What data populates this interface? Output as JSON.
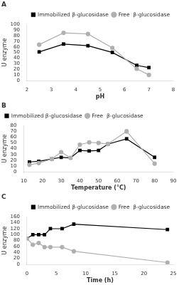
{
  "chart_data": [
    {
      "type": "line",
      "title": "A",
      "xlabel": "pH",
      "ylabel": "U enzyme",
      "xlim": [
        2,
        8
      ],
      "ylim": [
        0,
        100
      ],
      "xticks": [
        2,
        3,
        4,
        5,
        6,
        7,
        8
      ],
      "yticks": [
        0,
        10,
        20,
        30,
        40,
        50,
        60,
        70,
        80,
        90,
        100
      ],
      "grid": false,
      "legend": "upper right",
      "x": [
        2.5,
        3.5,
        4.5,
        5.5,
        6.5,
        7.0
      ],
      "series": [
        {
          "name": "Free  β-glucosidase",
          "color": "#b0b0b0",
          "marker": "circle",
          "line_style": "solid",
          "values": [
            64,
            85,
            83,
            58,
            21,
            10
          ],
          "errors": [
            2,
            2,
            2,
            2,
            2,
            2
          ]
        },
        {
          "name": "Immobilized β-glucosidase",
          "color": "#000000",
          "marker": "square",
          "line_style": "solid",
          "values": [
            51,
            65,
            62,
            50,
            27,
            23
          ],
          "errors": [
            2,
            2,
            2,
            2,
            2,
            2
          ]
        }
      ]
    },
    {
      "type": "line",
      "title": "B",
      "xlabel": "Temperature (°C)",
      "ylabel": "U enzyme",
      "xlim": [
        10,
        90
      ],
      "ylim": [
        0,
        80
      ],
      "xticks": [
        10,
        20,
        30,
        40,
        50,
        60,
        70,
        80,
        90
      ],
      "yticks": [
        0,
        10,
        20,
        30,
        40,
        50,
        60,
        70,
        80
      ],
      "grid": false,
      "legend": "upper left",
      "x": [
        13,
        18,
        25,
        30,
        35,
        40,
        45,
        50,
        55,
        65,
        80
      ],
      "series": [
        {
          "name": "Free  β-glucosidase",
          "color": "#b0b0b0",
          "marker": "circle",
          "line_style": "solid",
          "values": [
            12,
            15,
            22,
            34,
            24,
            47,
            51,
            50,
            48,
            70,
            14
          ],
          "errors": [
            1,
            1,
            1,
            2,
            1,
            2,
            2,
            2,
            2,
            3,
            2
          ]
        },
        {
          "name": "Immobilized β-glucosidase",
          "color": "#000000",
          "marker": "square",
          "line_style": "solid",
          "values": [
            17,
            18,
            22,
            25,
            24,
            37,
            36,
            37,
            48,
            57,
            25
          ],
          "errors": [
            1,
            1,
            1,
            1,
            1,
            1,
            1,
            1,
            2,
            2,
            2
          ]
        }
      ]
    },
    {
      "type": "line",
      "title": "C",
      "xlabel": "Time (h)",
      "ylabel": "U enzyme",
      "xlim": [
        0,
        25
      ],
      "ylim": [
        0,
        160
      ],
      "xticks": [
        0,
        5,
        10,
        15,
        20,
        25
      ],
      "yticks": [
        0,
        20,
        40,
        60,
        80,
        100,
        120,
        140,
        160
      ],
      "grid": false,
      "legend": "upper right",
      "x": [
        0,
        1,
        2,
        3,
        4,
        6,
        8,
        24
      ],
      "series": [
        {
          "name": "Free  β-glucosidase",
          "color": "#b0b0b0",
          "marker": "circle",
          "line_style": "solid",
          "values": [
            87,
            66,
            72,
            58,
            58,
            58,
            44,
            6
          ],
          "errors": [
            2,
            2,
            2,
            2,
            2,
            2,
            3,
            1
          ]
        },
        {
          "name": "Immobilized β-glucosidase",
          "color": "#000000",
          "marker": "square",
          "line_style": "solid",
          "values": [
            87,
            100,
            100,
            100,
            120,
            120,
            135,
            117
          ],
          "errors": [
            2,
            2,
            2,
            3,
            3,
            3,
            4,
            3
          ]
        }
      ]
    }
  ]
}
